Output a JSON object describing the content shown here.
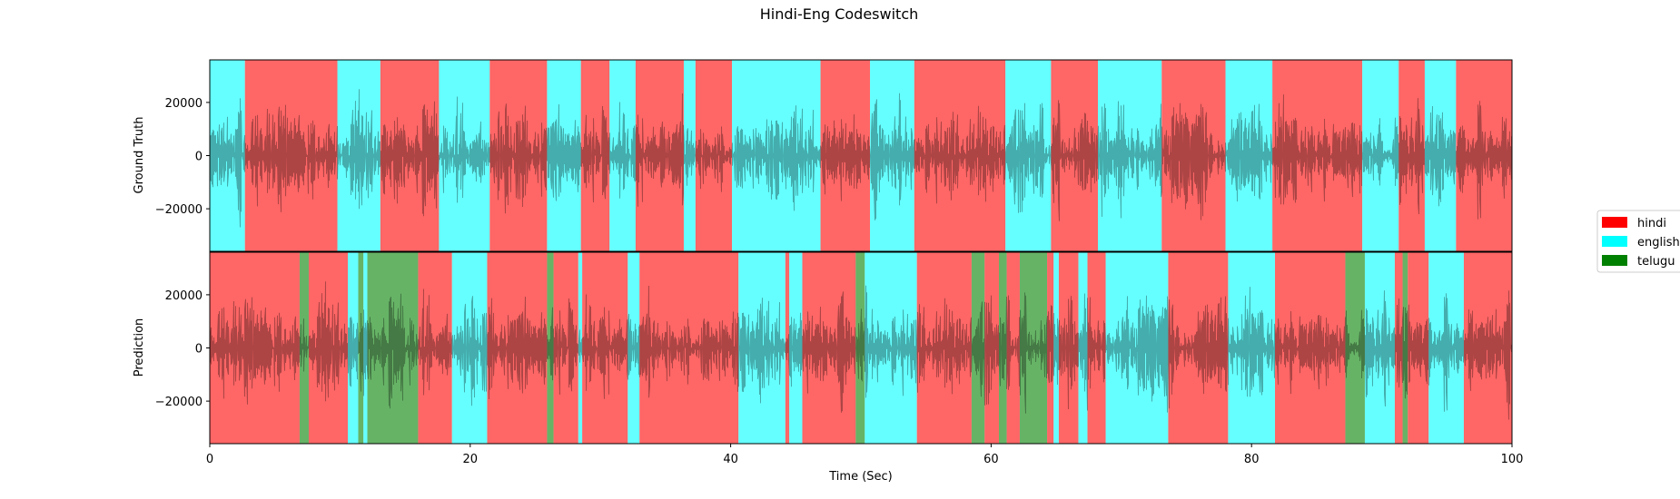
{
  "chart_data": {
    "type": "area",
    "title": "Hindi-Eng Codeswitch",
    "xlabel": "Time (Sec)",
    "xlim": [
      0,
      100
    ],
    "ylim": [
      -36000,
      36000
    ],
    "xticks": [
      0,
      20,
      40,
      60,
      80,
      100
    ],
    "yticks": [
      20000,
      0,
      -20000
    ],
    "ytick_labels": [
      "20000",
      "0",
      "−20000"
    ],
    "grid": false,
    "legend_position": "right",
    "legend": [
      {
        "key": "hindi",
        "label": "hindi",
        "color": "#ff0000"
      },
      {
        "key": "english",
        "label": "english",
        "color": "#00ffff"
      },
      {
        "key": "telugu",
        "label": "telugu",
        "color": "#008000"
      }
    ],
    "panels": [
      {
        "ylabel": "Ground Truth",
        "segments": [
          {
            "start": 0,
            "end": 2.7,
            "lang": "english"
          },
          {
            "start": 2.7,
            "end": 9.8,
            "lang": "hindi"
          },
          {
            "start": 9.8,
            "end": 13.1,
            "lang": "english"
          },
          {
            "start": 13.1,
            "end": 17.6,
            "lang": "hindi"
          },
          {
            "start": 17.6,
            "end": 21.5,
            "lang": "english"
          },
          {
            "start": 21.5,
            "end": 25.9,
            "lang": "hindi"
          },
          {
            "start": 25.9,
            "end": 28.5,
            "lang": "english"
          },
          {
            "start": 28.5,
            "end": 30.7,
            "lang": "hindi"
          },
          {
            "start": 30.7,
            "end": 32.7,
            "lang": "english"
          },
          {
            "start": 32.7,
            "end": 36.4,
            "lang": "hindi"
          },
          {
            "start": 36.4,
            "end": 37.3,
            "lang": "english"
          },
          {
            "start": 37.3,
            "end": 40.1,
            "lang": "hindi"
          },
          {
            "start": 40.1,
            "end": 46.9,
            "lang": "english"
          },
          {
            "start": 46.9,
            "end": 50.7,
            "lang": "hindi"
          },
          {
            "start": 50.7,
            "end": 54.1,
            "lang": "english"
          },
          {
            "start": 54.1,
            "end": 61.1,
            "lang": "hindi"
          },
          {
            "start": 61.1,
            "end": 64.6,
            "lang": "english"
          },
          {
            "start": 64.6,
            "end": 68.2,
            "lang": "hindi"
          },
          {
            "start": 68.2,
            "end": 73.1,
            "lang": "english"
          },
          {
            "start": 73.1,
            "end": 78.0,
            "lang": "hindi"
          },
          {
            "start": 78.0,
            "end": 81.6,
            "lang": "english"
          },
          {
            "start": 81.6,
            "end": 88.5,
            "lang": "hindi"
          },
          {
            "start": 88.5,
            "end": 91.3,
            "lang": "english"
          },
          {
            "start": 91.3,
            "end": 93.3,
            "lang": "hindi"
          },
          {
            "start": 93.3,
            "end": 95.7,
            "lang": "english"
          },
          {
            "start": 95.7,
            "end": 100,
            "lang": "hindi"
          }
        ]
      },
      {
        "ylabel": "Prediction",
        "segments": [
          {
            "start": 0,
            "end": 6.9,
            "lang": "hindi"
          },
          {
            "start": 6.9,
            "end": 7.6,
            "lang": "telugu"
          },
          {
            "start": 7.6,
            "end": 10.6,
            "lang": "hindi"
          },
          {
            "start": 10.6,
            "end": 11.4,
            "lang": "english"
          },
          {
            "start": 11.4,
            "end": 11.8,
            "lang": "telugu"
          },
          {
            "start": 11.8,
            "end": 12.1,
            "lang": "english"
          },
          {
            "start": 12.1,
            "end": 16.0,
            "lang": "telugu"
          },
          {
            "start": 16.0,
            "end": 18.6,
            "lang": "hindi"
          },
          {
            "start": 18.6,
            "end": 21.3,
            "lang": "english"
          },
          {
            "start": 21.3,
            "end": 25.9,
            "lang": "hindi"
          },
          {
            "start": 25.9,
            "end": 26.4,
            "lang": "telugu"
          },
          {
            "start": 26.4,
            "end": 28.3,
            "lang": "hindi"
          },
          {
            "start": 28.3,
            "end": 28.6,
            "lang": "english"
          },
          {
            "start": 28.6,
            "end": 32.1,
            "lang": "hindi"
          },
          {
            "start": 32.1,
            "end": 33.0,
            "lang": "english"
          },
          {
            "start": 33.0,
            "end": 40.6,
            "lang": "hindi"
          },
          {
            "start": 40.6,
            "end": 44.2,
            "lang": "english"
          },
          {
            "start": 44.2,
            "end": 44.5,
            "lang": "hindi"
          },
          {
            "start": 44.5,
            "end": 45.5,
            "lang": "english"
          },
          {
            "start": 45.5,
            "end": 49.6,
            "lang": "hindi"
          },
          {
            "start": 49.6,
            "end": 50.3,
            "lang": "telugu"
          },
          {
            "start": 50.3,
            "end": 54.3,
            "lang": "english"
          },
          {
            "start": 54.3,
            "end": 58.5,
            "lang": "hindi"
          },
          {
            "start": 58.5,
            "end": 59.5,
            "lang": "telugu"
          },
          {
            "start": 59.5,
            "end": 60.6,
            "lang": "hindi"
          },
          {
            "start": 60.6,
            "end": 61.2,
            "lang": "telugu"
          },
          {
            "start": 61.2,
            "end": 62.2,
            "lang": "hindi"
          },
          {
            "start": 62.2,
            "end": 64.3,
            "lang": "telugu"
          },
          {
            "start": 64.3,
            "end": 64.8,
            "lang": "hindi"
          },
          {
            "start": 64.8,
            "end": 65.2,
            "lang": "english"
          },
          {
            "start": 65.2,
            "end": 66.7,
            "lang": "hindi"
          },
          {
            "start": 66.7,
            "end": 67.4,
            "lang": "english"
          },
          {
            "start": 67.4,
            "end": 68.8,
            "lang": "hindi"
          },
          {
            "start": 68.8,
            "end": 73.6,
            "lang": "english"
          },
          {
            "start": 73.6,
            "end": 78.2,
            "lang": "hindi"
          },
          {
            "start": 78.2,
            "end": 81.8,
            "lang": "english"
          },
          {
            "start": 81.8,
            "end": 87.2,
            "lang": "hindi"
          },
          {
            "start": 87.2,
            "end": 88.7,
            "lang": "telugu"
          },
          {
            "start": 88.7,
            "end": 91.0,
            "lang": "english"
          },
          {
            "start": 91.0,
            "end": 91.6,
            "lang": "hindi"
          },
          {
            "start": 91.6,
            "end": 92.0,
            "lang": "telugu"
          },
          {
            "start": 92.0,
            "end": 93.6,
            "lang": "hindi"
          },
          {
            "start": 93.6,
            "end": 96.3,
            "lang": "english"
          },
          {
            "start": 96.3,
            "end": 100,
            "lang": "hindi"
          }
        ]
      }
    ]
  }
}
